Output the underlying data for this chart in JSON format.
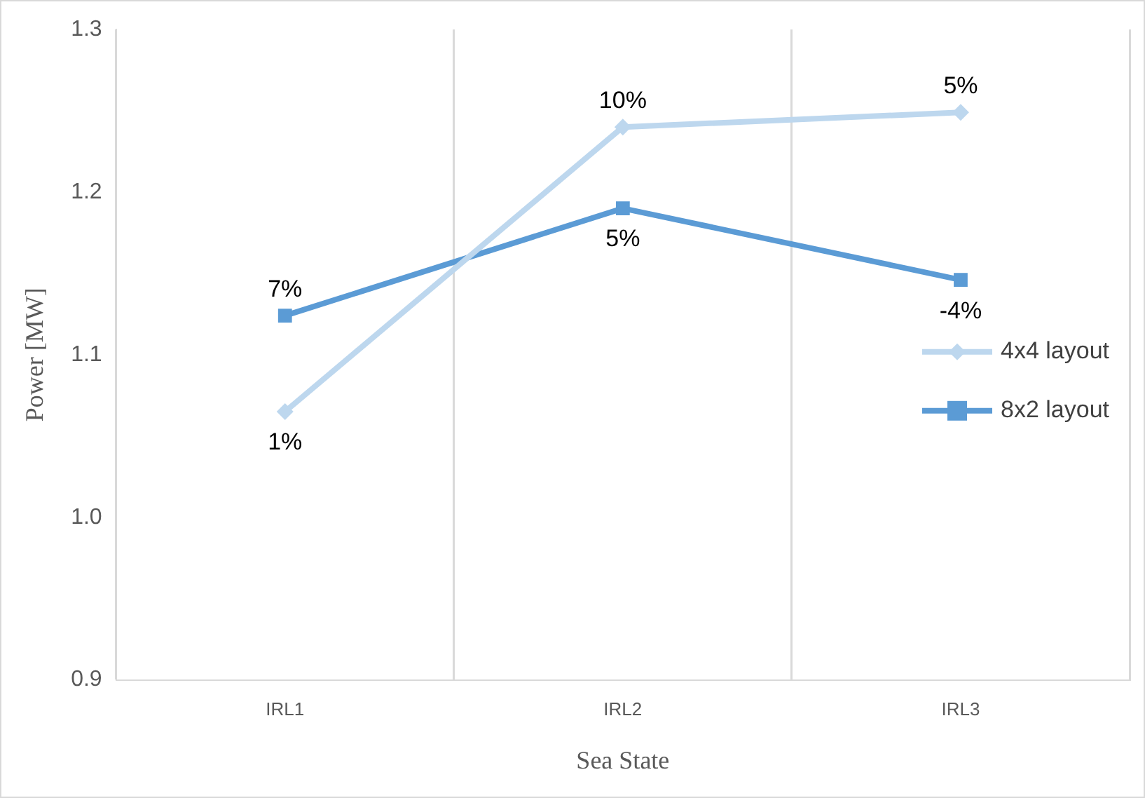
{
  "chart_data": {
    "type": "line",
    "xlabel": "Sea State",
    "ylabel": "Power [MW]",
    "categories": [
      "IRL1",
      "IRL2",
      "IRL3"
    ],
    "series": [
      {
        "name": "4x4 layout",
        "color": "#bdd7ee",
        "marker": "diamond",
        "values": [
          1.065,
          1.24,
          1.249
        ]
      },
      {
        "name": "8x2 layout",
        "color": "#5b9bd5",
        "marker": "square",
        "values": [
          1.124,
          1.19,
          1.146
        ]
      }
    ],
    "annotations": [
      {
        "text": "1%",
        "x": "IRL1",
        "y": 1.065
      },
      {
        "text": "10%",
        "x": "IRL2",
        "y": 1.24
      },
      {
        "text": "5%",
        "x": "IRL3",
        "y": 1.249
      },
      {
        "text": "7%",
        "x": "IRL1",
        "y": 1.124
      },
      {
        "text": "5%",
        "x": "IRL2",
        "y": 1.19
      },
      {
        "text": "-4%",
        "x": "IRL3",
        "y": 1.146
      }
    ],
    "ylim": [
      0.9,
      1.3
    ],
    "yticks": [
      0.9,
      {
        "value": 1,
        "label": "1.0"
      },
      1.1,
      1.2,
      1.3
    ],
    "grid": "x",
    "legend": "right"
  }
}
